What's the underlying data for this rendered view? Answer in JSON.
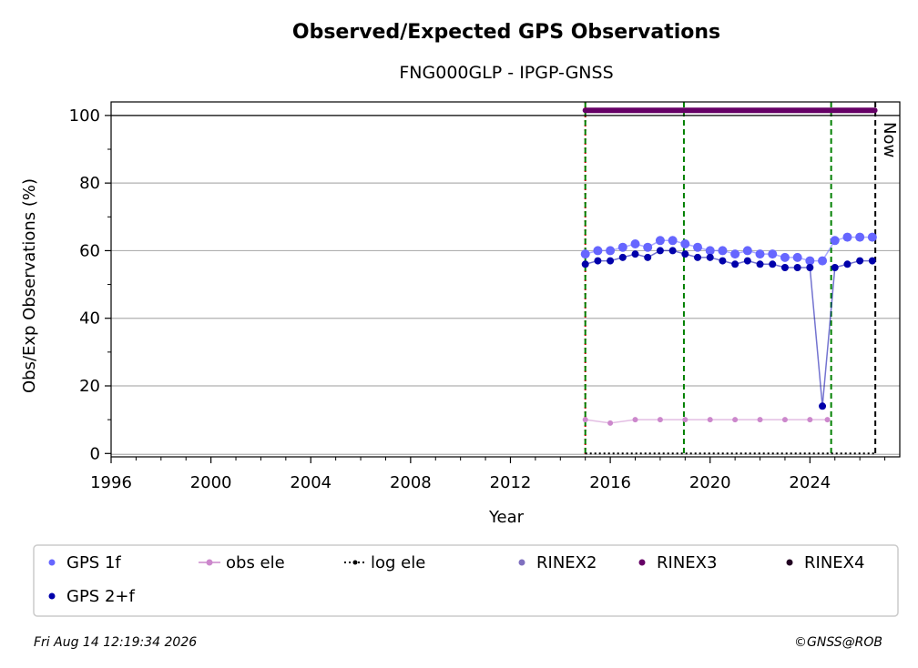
{
  "chart_data": {
    "type": "scatter",
    "title": "Observed/Expected GPS Observations",
    "subtitle": "FNG000GLP - IPGP-GNSS",
    "xlabel": "Year",
    "ylabel": "Obs/Exp Observations (%)",
    "xlim": [
      1996,
      2027.6
    ],
    "ylim": [
      -1,
      104
    ],
    "x_ticks": [
      1996,
      2000,
      2004,
      2008,
      2012,
      2016,
      2020,
      2024
    ],
    "x_tick_labels": [
      "1996",
      "2000",
      "2004",
      "2008",
      "2012",
      "2016",
      "2020",
      "2024"
    ],
    "y_ticks": [
      0,
      20,
      40,
      60,
      80,
      100
    ],
    "y_tick_labels": [
      "0",
      "20",
      "40",
      "60",
      "80",
      "100"
    ],
    "grid": "horizontal",
    "series": [
      {
        "name": "GPS 1f",
        "color": "#6666ff",
        "x": [
          2015.0,
          2015.5,
          2016.0,
          2016.5,
          2017.0,
          2017.5,
          2018.0,
          2018.5,
          2019.0,
          2019.5,
          2020.0,
          2020.5,
          2021.0,
          2021.5,
          2022.0,
          2022.5,
          2023.0,
          2023.5,
          2024.0,
          2024.5,
          2025.0,
          2025.5,
          2026.0,
          2026.5
        ],
        "values": [
          59,
          60,
          60,
          61,
          62,
          61,
          63,
          63,
          62,
          61,
          60,
          60,
          59,
          60,
          59,
          59,
          58,
          58,
          57,
          57,
          63,
          64,
          64,
          64
        ]
      },
      {
        "name": "GPS 2+f",
        "color": "#0000aa",
        "x": [
          2015.0,
          2015.5,
          2016.0,
          2016.5,
          2017.0,
          2017.5,
          2018.0,
          2018.5,
          2019.0,
          2019.5,
          2020.0,
          2020.5,
          2021.0,
          2021.5,
          2022.0,
          2022.5,
          2023.0,
          2023.5,
          2024.0,
          2024.5,
          2025.0,
          2025.5,
          2026.0,
          2026.5
        ],
        "values": [
          56,
          57,
          57,
          58,
          59,
          58,
          60,
          60,
          59,
          58,
          58,
          57,
          56,
          57,
          56,
          56,
          55,
          55,
          55,
          14,
          55,
          56,
          57,
          57
        ]
      },
      {
        "name": "obs ele",
        "color": "#cc88cc",
        "x": [
          2015.0,
          2016.0,
          2017.0,
          2018.0,
          2019.0,
          2020.0,
          2021.0,
          2022.0,
          2023.0,
          2024.0,
          2024.7
        ],
        "values": [
          10,
          9,
          10,
          10,
          10,
          10,
          10,
          10,
          10,
          10,
          10
        ]
      },
      {
        "name": "log ele",
        "color": "#000000",
        "x": [
          2015.0,
          2026.6
        ],
        "values": [
          0,
          0
        ]
      },
      {
        "name": "RINEX2",
        "color": "#7f70bf",
        "x": [],
        "values": []
      },
      {
        "name": "RINEX3",
        "color": "#660066",
        "x": [
          2015.0,
          2026.6
        ],
        "values": [
          101.5,
          101.5
        ]
      },
      {
        "name": "RINEX4",
        "color": "#220022",
        "x": [],
        "values": []
      }
    ],
    "vertical_lines": [
      {
        "x": 2015.0,
        "color": "#cc0000",
        "style": "dotted"
      },
      {
        "x": 2015.0,
        "color": "#008000",
        "style": "dashed"
      },
      {
        "x": 2018.95,
        "color": "#008000",
        "style": "dashed"
      },
      {
        "x": 2024.85,
        "color": "#008000",
        "style": "dashed"
      },
      {
        "x": 2026.62,
        "color": "#000000",
        "style": "dashed",
        "label": "Now"
      }
    ],
    "legend": {
      "placement": "bottom",
      "entries": [
        "GPS 1f",
        "obs ele",
        "log ele",
        "RINEX2",
        "RINEX3",
        "RINEX4",
        "GPS 2+f"
      ]
    }
  },
  "footer": {
    "timestamp": "Fri Aug 14 12:19:34 2026",
    "credit": "©GNSS@ROB"
  }
}
